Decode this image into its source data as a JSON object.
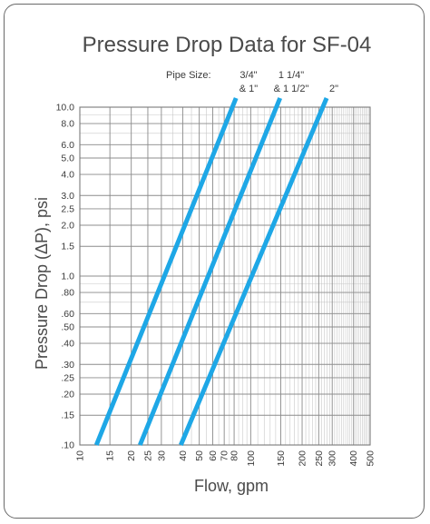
{
  "chart_data": {
    "type": "line",
    "title": "Pressure Drop Data for SF-04",
    "xlabel": "Flow, gpm",
    "ylabel": "Pressure Drop (ΔP), psi",
    "x_scale": "log",
    "y_scale": "log",
    "xlim": [
      10,
      500
    ],
    "ylim": [
      0.1,
      10
    ],
    "grid": true,
    "x_ticks": [
      "10",
      "15",
      "20",
      "25",
      "30",
      "40",
      "50",
      "60",
      "70",
      "80",
      "100",
      "150",
      "200",
      "250",
      "300",
      "400",
      "500"
    ],
    "x_ticks_values": [
      10,
      15,
      20,
      25,
      30,
      40,
      50,
      60,
      70,
      80,
      100,
      150,
      200,
      250,
      300,
      400,
      500
    ],
    "y_ticks": [
      ".10",
      ".15",
      ".20",
      ".25",
      ".30",
      ".40",
      ".50",
      ".60",
      ".80",
      "1.0",
      "1.5",
      "2.0",
      "2.5",
      "3.0",
      "4.0",
      "5.0",
      "6.0",
      "8.0",
      "10.0"
    ],
    "y_ticks_values": [
      0.1,
      0.15,
      0.2,
      0.25,
      0.3,
      0.4,
      0.5,
      0.6,
      0.8,
      1.0,
      1.5,
      2.0,
      2.5,
      3.0,
      4.0,
      5.0,
      6.0,
      8.0,
      10.0
    ],
    "legend_title": "Pipe Size:",
    "series": [
      {
        "label_lines": [
          "3/4\"",
          "& 1\""
        ],
        "x": [
          12.5,
          84
        ],
        "y": [
          0.1,
          12
        ]
      },
      {
        "label_lines": [
          "1 1/4\"",
          "& 1 1/2\""
        ],
        "x": [
          22.5,
          152
        ],
        "y": [
          0.1,
          12
        ]
      },
      {
        "label_lines": [
          "2\""
        ],
        "x": [
          39,
          285
        ],
        "y": [
          0.1,
          12
        ]
      }
    ],
    "line_color": "#1ea7e6"
  }
}
